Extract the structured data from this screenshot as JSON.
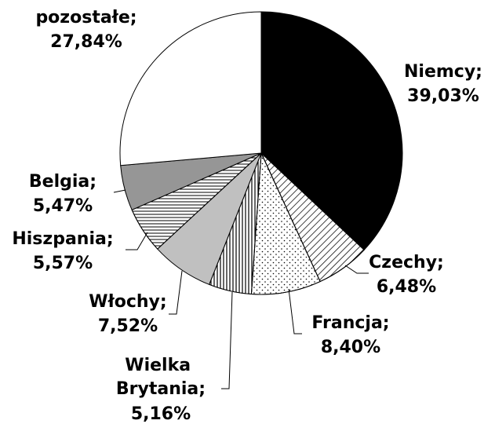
{
  "chart_data": {
    "type": "pie",
    "categories": [
      "Niemcy;",
      "Czechy;",
      "Francja;",
      "Wielka Brytania;",
      "Włochy;",
      "Hiszpania;",
      "Belgia;",
      "pozostałe;"
    ],
    "values": [
      39.03,
      6.48,
      8.4,
      5.16,
      7.52,
      5.57,
      5.47,
      27.84
    ],
    "value_labels": [
      "39,03%",
      "6,48%",
      "8,40%",
      "5,16%",
      "7,52%",
      "5,57%",
      "5,47%",
      "27,84%"
    ],
    "colors": [
      "#000000",
      "#ffffff",
      "#ffffff",
      "#ffffff",
      "#c0c0c0",
      "#ffffff",
      "#969696",
      "#ffffff"
    ]
  }
}
